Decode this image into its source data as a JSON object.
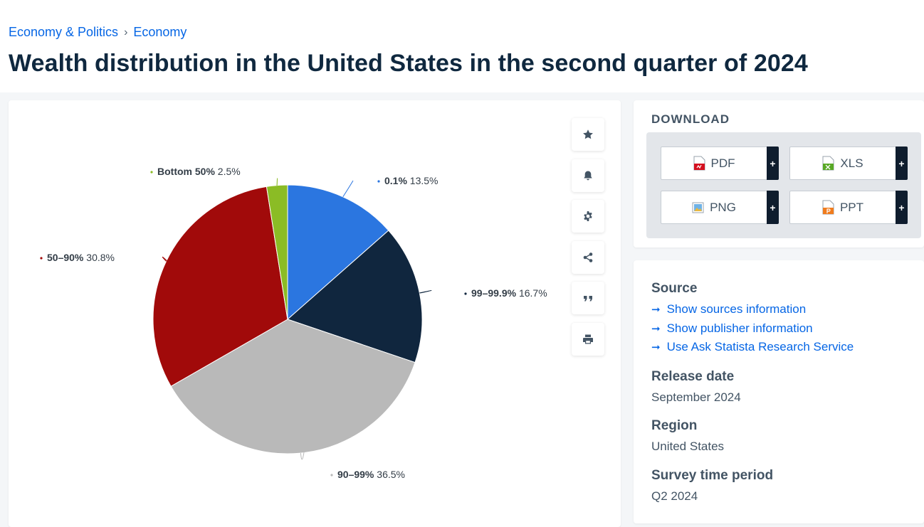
{
  "breadcrumb": {
    "items": [
      "Economy & Politics",
      "Economy"
    ],
    "separator": "›"
  },
  "page_title": "Wealth distribution in the United States in the second quarter of 2024",
  "tools": [
    "star-icon",
    "bell-icon",
    "gear-icon",
    "share-icon",
    "quote-icon",
    "print-icon"
  ],
  "download": {
    "title": "DOWNLOAD",
    "buttons": [
      {
        "label": "PDF",
        "icon": "pdf-file-icon",
        "plus": "+"
      },
      {
        "label": "XLS",
        "icon": "xls-file-icon",
        "plus": "+"
      },
      {
        "label": "PNG",
        "icon": "png-file-icon",
        "plus": "+"
      },
      {
        "label": "PPT",
        "icon": "ppt-file-icon",
        "plus": "+"
      }
    ]
  },
  "info": {
    "source_heading": "Source",
    "links": [
      "Show sources information",
      "Show publisher information",
      "Use Ask Statista Research Service"
    ],
    "release_heading": "Release date",
    "release_value": "September 2024",
    "region_heading": "Region",
    "region_value": "United States",
    "period_heading": "Survey time period",
    "period_value": "Q2 2024"
  },
  "chart_data": {
    "type": "pie",
    "title": "",
    "slices": [
      {
        "label": "0.1%",
        "value": 13.5,
        "display": "13.5%",
        "color": "#2b76e0"
      },
      {
        "label": "99–99.9%",
        "value": 16.7,
        "display": "16.7%",
        "color": "#10263e"
      },
      {
        "label": "90–99%",
        "value": 36.5,
        "display": "36.5%",
        "color": "#b9b9b9"
      },
      {
        "label": "50–90%",
        "value": 30.8,
        "display": "30.8%",
        "color": "#a10a0a"
      },
      {
        "label": "Bottom 50%",
        "value": 2.5,
        "display": "2.5%",
        "color": "#8bbc25"
      }
    ]
  }
}
